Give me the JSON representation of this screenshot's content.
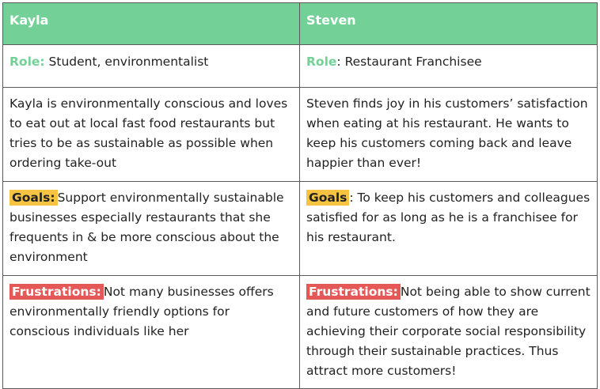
{
  "columns": [
    {
      "name": "Kayla",
      "role_label": "Role:",
      "role_value": " Student, environmentalist",
      "bio": "Kayla is environmentally conscious and loves to eat out at local fast food restaurants but tries to be as sustainable as possible when ordering take-out",
      "goals_label": "Goals:",
      "goals_text": "Support environmentally sustainable businesses especially restaurants that she frequents in & be more conscious about the environment",
      "frustrations_label": "Frustrations:",
      "frustrations_text": "Not many businesses offers environmentally friendly options for conscious individuals like her"
    },
    {
      "name": "Steven",
      "role_label": "Role",
      "role_value": ": Restaurant Franchisee",
      "bio": "Steven finds joy in his customers’ satisfaction when eating at his restaurant. He wants to keep his customers coming back and leave happier than ever!",
      "goals_label": "Goals",
      "goals_text": ": To keep his customers and colleagues satisfied for as long as he is a franchisee for his restaurant.",
      "frustrations_label": "Frustrations:",
      "frustrations_text": "Not being able to show current and future customers of how they are achieving their corporate social responsibility through their sustainable practices. Thus attract more customers!"
    }
  ],
  "colors": {
    "header_bg": "#73d097",
    "role_label": "#73d097",
    "goals_tag": "#f6c343",
    "frustrations_tag": "#e45858",
    "border": "#5a5a5a"
  }
}
